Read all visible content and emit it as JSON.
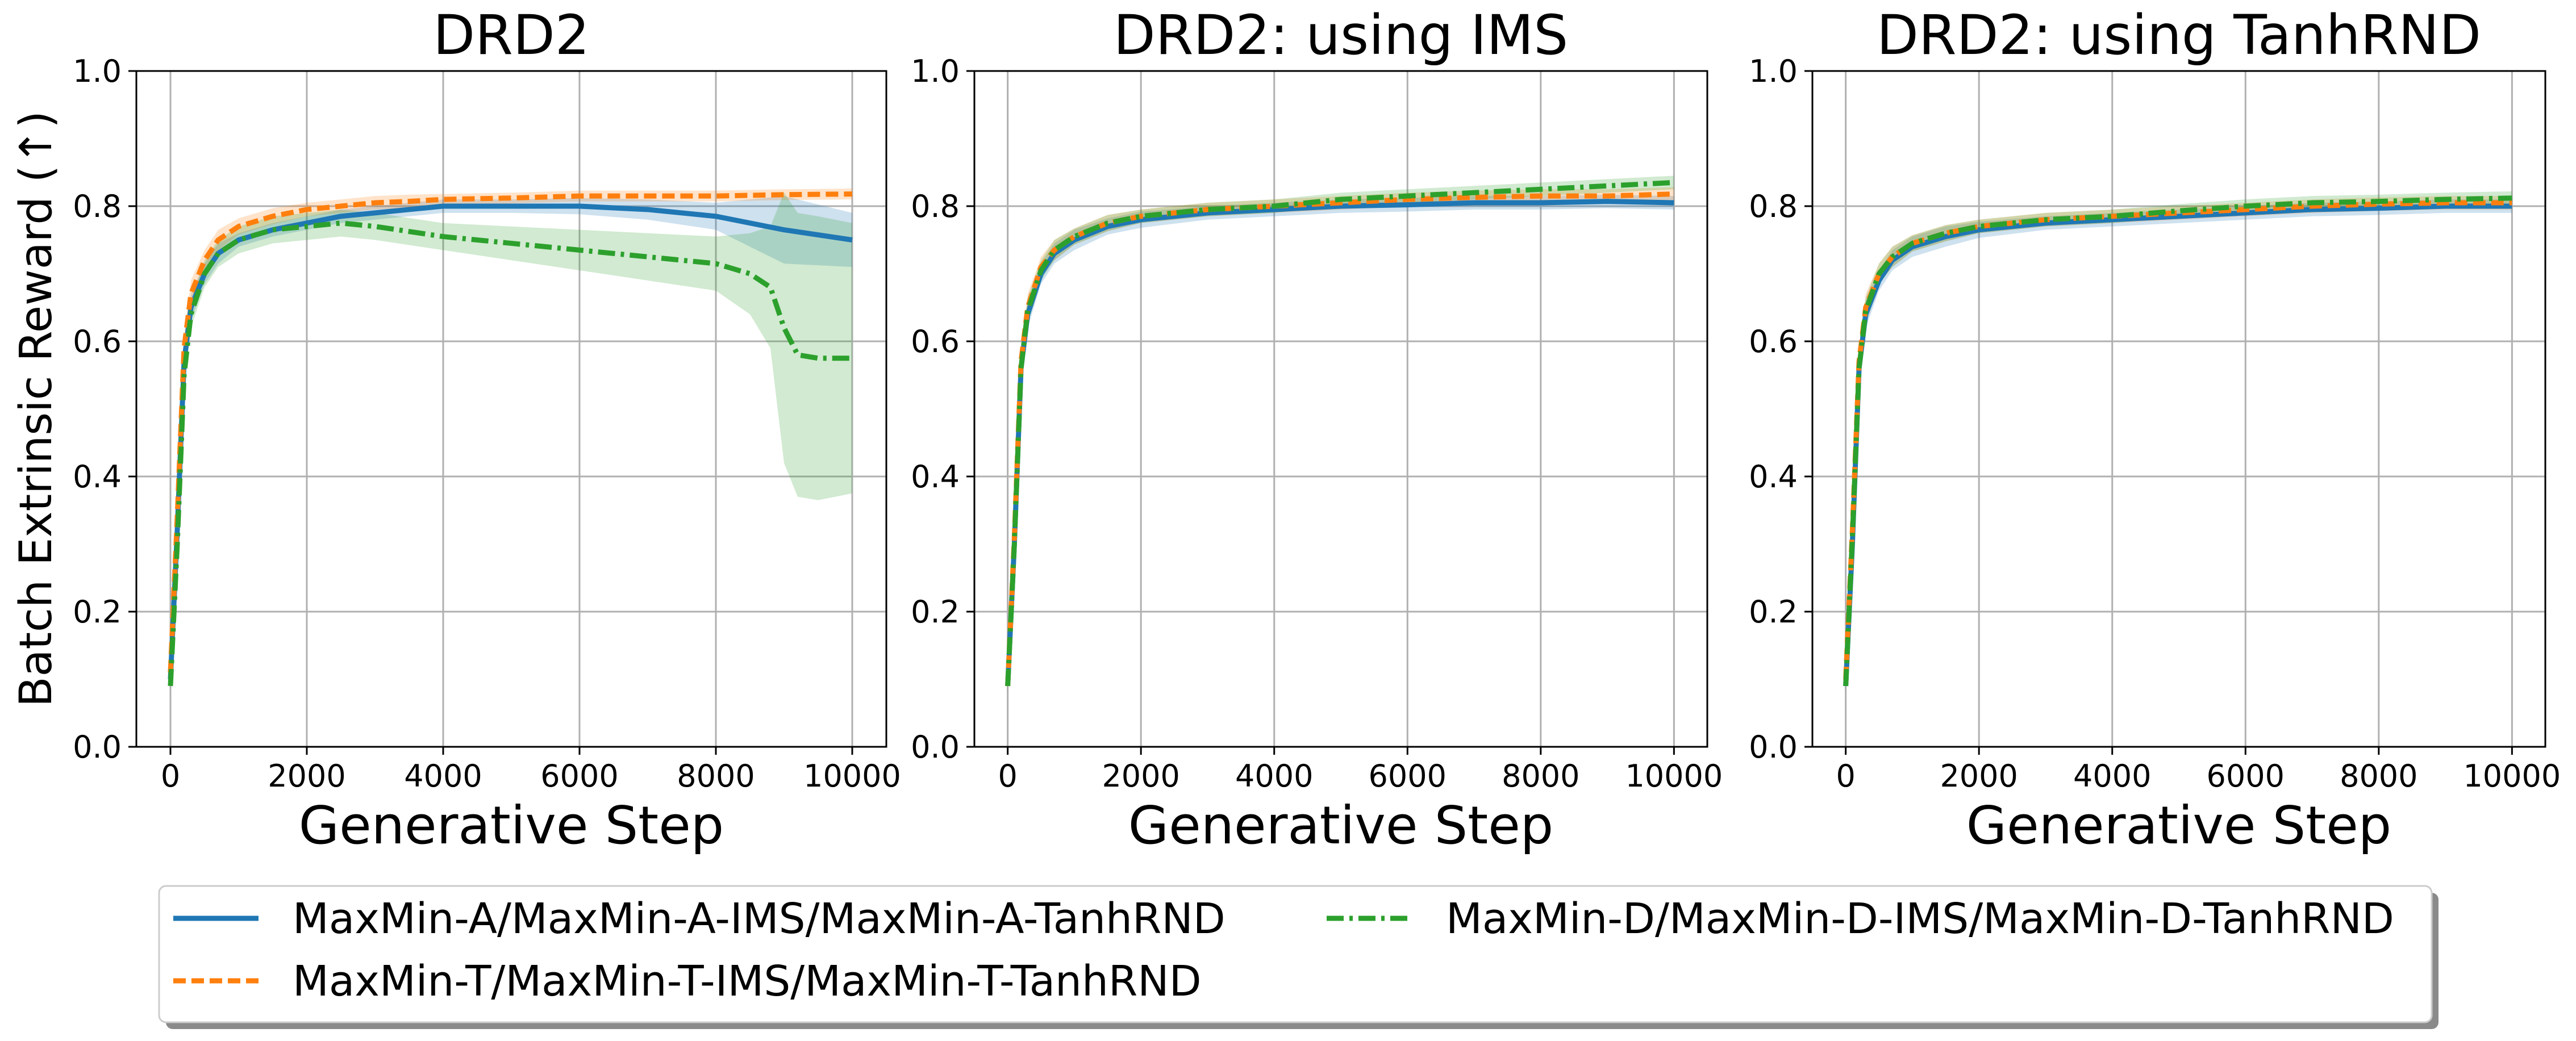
{
  "chart_data": [
    {
      "type": "line",
      "title": "DRD2",
      "xlabel": "Generative Step",
      "ylabel": "Batch Extrinsic Reward (↑)",
      "xlim": [
        -500,
        10500
      ],
      "ylim": [
        0.0,
        1.0
      ],
      "xticks": [
        0,
        2000,
        4000,
        6000,
        8000,
        10000
      ],
      "yticks": [
        "0.0",
        "0.2",
        "0.4",
        "0.6",
        "0.8",
        "1.0"
      ],
      "grid": true,
      "series": [
        {
          "name": "MaxMin-A",
          "x": [
            0,
            100,
            200,
            300,
            500,
            700,
            1000,
            1500,
            2000,
            2500,
            3000,
            3500,
            4000,
            5000,
            6000,
            7000,
            8000,
            9000,
            10000
          ],
          "values": [
            0.1,
            0.32,
            0.57,
            0.65,
            0.7,
            0.73,
            0.75,
            0.765,
            0.775,
            0.785,
            0.79,
            0.795,
            0.8,
            0.8,
            0.8,
            0.795,
            0.785,
            0.765,
            0.75
          ],
          "band": [
            0.01,
            0.02,
            0.02,
            0.02,
            0.015,
            0.015,
            0.01,
            0.01,
            0.01,
            0.01,
            0.01,
            0.01,
            0.01,
            0.01,
            0.012,
            0.015,
            0.02,
            0.05,
            0.04
          ]
        },
        {
          "name": "MaxMin-T",
          "x": [
            0,
            100,
            200,
            300,
            500,
            700,
            1000,
            1500,
            2000,
            2500,
            3000,
            3500,
            4000,
            5000,
            6000,
            7000,
            8000,
            9000,
            10000
          ],
          "values": [
            0.11,
            0.34,
            0.59,
            0.67,
            0.72,
            0.75,
            0.77,
            0.785,
            0.795,
            0.8,
            0.805,
            0.807,
            0.81,
            0.812,
            0.815,
            0.815,
            0.815,
            0.817,
            0.818
          ],
          "band": [
            0.01,
            0.02,
            0.02,
            0.02,
            0.015,
            0.015,
            0.012,
            0.012,
            0.01,
            0.01,
            0.01,
            0.01,
            0.008,
            0.008,
            0.008,
            0.008,
            0.008,
            0.008,
            0.008
          ]
        },
        {
          "name": "MaxMin-D",
          "x": [
            0,
            100,
            200,
            300,
            500,
            700,
            1000,
            1500,
            2000,
            2500,
            3000,
            4000,
            5000,
            6000,
            7000,
            8000,
            8500,
            8800,
            9000,
            9200,
            9500,
            10000
          ],
          "values": [
            0.09,
            0.3,
            0.55,
            0.64,
            0.7,
            0.73,
            0.75,
            0.765,
            0.77,
            0.775,
            0.77,
            0.755,
            0.745,
            0.735,
            0.725,
            0.715,
            0.7,
            0.68,
            0.62,
            0.58,
            0.575,
            0.575
          ],
          "band": [
            0.01,
            0.02,
            0.02,
            0.02,
            0.02,
            0.02,
            0.02,
            0.02,
            0.02,
            0.02,
            0.02,
            0.02,
            0.025,
            0.03,
            0.035,
            0.04,
            0.06,
            0.09,
            0.2,
            0.21,
            0.21,
            0.2
          ]
        }
      ]
    },
    {
      "type": "line",
      "title": "DRD2: using IMS",
      "xlabel": "Generative Step",
      "ylabel": "",
      "xlim": [
        -500,
        10500
      ],
      "ylim": [
        0.0,
        1.0
      ],
      "xticks": [
        0,
        2000,
        4000,
        6000,
        8000,
        10000
      ],
      "yticks": [
        "0.0",
        "0.2",
        "0.4",
        "0.6",
        "0.8",
        "1.0"
      ],
      "grid": true,
      "series": [
        {
          "name": "MaxMin-A-IMS",
          "x": [
            0,
            100,
            200,
            300,
            500,
            700,
            1000,
            1500,
            2000,
            3000,
            4000,
            5000,
            6000,
            7000,
            8000,
            9000,
            10000
          ],
          "values": [
            0.09,
            0.3,
            0.56,
            0.64,
            0.7,
            0.73,
            0.75,
            0.77,
            0.78,
            0.79,
            0.795,
            0.8,
            0.802,
            0.805,
            0.805,
            0.807,
            0.805
          ],
          "band": [
            0.01,
            0.02,
            0.02,
            0.02,
            0.015,
            0.015,
            0.015,
            0.012,
            0.012,
            0.01,
            0.01,
            0.01,
            0.01,
            0.01,
            0.01,
            0.01,
            0.01
          ]
        },
        {
          "name": "MaxMin-T-IMS",
          "x": [
            0,
            100,
            200,
            300,
            500,
            700,
            1000,
            1500,
            2000,
            3000,
            4000,
            5000,
            6000,
            7000,
            8000,
            9000,
            10000
          ],
          "values": [
            0.09,
            0.31,
            0.57,
            0.65,
            0.71,
            0.735,
            0.755,
            0.775,
            0.785,
            0.795,
            0.8,
            0.805,
            0.81,
            0.813,
            0.815,
            0.815,
            0.818
          ],
          "band": [
            0.01,
            0.02,
            0.02,
            0.02,
            0.015,
            0.015,
            0.012,
            0.012,
            0.01,
            0.01,
            0.01,
            0.01,
            0.01,
            0.01,
            0.01,
            0.01,
            0.01
          ]
        },
        {
          "name": "MaxMin-D-IMS",
          "x": [
            0,
            100,
            200,
            300,
            500,
            700,
            1000,
            1500,
            2000,
            3000,
            4000,
            5000,
            6000,
            7000,
            8000,
            9000,
            10000
          ],
          "values": [
            0.09,
            0.3,
            0.56,
            0.645,
            0.705,
            0.735,
            0.755,
            0.775,
            0.785,
            0.795,
            0.8,
            0.81,
            0.815,
            0.82,
            0.825,
            0.83,
            0.835
          ],
          "band": [
            0.01,
            0.02,
            0.02,
            0.02,
            0.015,
            0.015,
            0.012,
            0.012,
            0.01,
            0.01,
            0.01,
            0.01,
            0.01,
            0.01,
            0.01,
            0.01,
            0.01
          ]
        }
      ]
    },
    {
      "type": "line",
      "title": "DRD2: using TanhRND",
      "xlabel": "Generative Step",
      "ylabel": "",
      "xlim": [
        -500,
        10500
      ],
      "ylim": [
        0.0,
        1.0
      ],
      "xticks": [
        0,
        2000,
        4000,
        6000,
        8000,
        10000
      ],
      "yticks": [
        "0.0",
        "0.2",
        "0.4",
        "0.6",
        "0.8",
        "1.0"
      ],
      "grid": true,
      "series": [
        {
          "name": "MaxMin-A-TanhRND",
          "x": [
            0,
            100,
            200,
            300,
            500,
            700,
            1000,
            1500,
            2000,
            3000,
            4000,
            5000,
            6000,
            7000,
            8000,
            9000,
            10000
          ],
          "values": [
            0.09,
            0.3,
            0.56,
            0.64,
            0.69,
            0.72,
            0.74,
            0.755,
            0.765,
            0.775,
            0.78,
            0.785,
            0.79,
            0.795,
            0.797,
            0.8,
            0.8
          ],
          "band": [
            0.01,
            0.02,
            0.02,
            0.02,
            0.015,
            0.015,
            0.015,
            0.015,
            0.012,
            0.01,
            0.01,
            0.01,
            0.01,
            0.01,
            0.01,
            0.01,
            0.01
          ]
        },
        {
          "name": "MaxMin-T-TanhRND",
          "x": [
            0,
            100,
            200,
            300,
            500,
            700,
            1000,
            1500,
            2000,
            3000,
            4000,
            5000,
            6000,
            7000,
            8000,
            9000,
            10000
          ],
          "values": [
            0.1,
            0.32,
            0.57,
            0.65,
            0.7,
            0.725,
            0.745,
            0.76,
            0.77,
            0.78,
            0.785,
            0.79,
            0.795,
            0.8,
            0.803,
            0.805,
            0.805
          ],
          "band": [
            0.01,
            0.02,
            0.02,
            0.02,
            0.015,
            0.015,
            0.012,
            0.012,
            0.01,
            0.01,
            0.01,
            0.01,
            0.01,
            0.01,
            0.01,
            0.01,
            0.01
          ]
        },
        {
          "name": "MaxMin-D-TanhRND",
          "x": [
            0,
            100,
            200,
            300,
            500,
            700,
            1000,
            1500,
            2000,
            3000,
            4000,
            5000,
            6000,
            7000,
            8000,
            9000,
            10000
          ],
          "values": [
            0.09,
            0.31,
            0.56,
            0.645,
            0.7,
            0.725,
            0.745,
            0.76,
            0.77,
            0.78,
            0.785,
            0.793,
            0.8,
            0.805,
            0.807,
            0.81,
            0.812
          ],
          "band": [
            0.01,
            0.02,
            0.02,
            0.02,
            0.015,
            0.015,
            0.012,
            0.012,
            0.01,
            0.01,
            0.01,
            0.01,
            0.01,
            0.01,
            0.01,
            0.01,
            0.01
          ]
        }
      ]
    }
  ],
  "legend": {
    "position": "bottom-center",
    "entries": [
      {
        "label": "MaxMin-A/MaxMin-A-IMS/MaxMin-A-TanhRND",
        "color": "#1f77b4",
        "style": "solid"
      },
      {
        "label": "MaxMin-T/MaxMin-T-IMS/MaxMin-T-TanhRND",
        "color": "#ff7f0e",
        "style": "dashed"
      },
      {
        "label": "MaxMin-D/MaxMin-D-IMS/MaxMin-D-TanhRND",
        "color": "#2ca02c",
        "style": "dashdot"
      }
    ]
  }
}
